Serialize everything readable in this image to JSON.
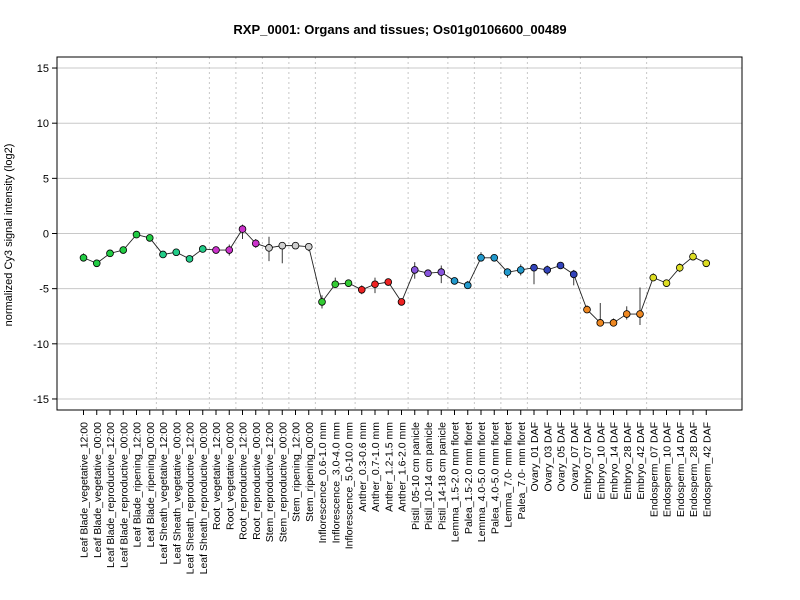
{
  "chart_data": {
    "type": "line",
    "title": "RXP_0001: Organs and tissues; Os01g0106600_00489",
    "ylabel": "normalized Cy3 signal intensity (log2)",
    "xlabel": "",
    "ylim": [
      -16,
      16
    ],
    "yticks": [
      -15,
      -10,
      -5,
      0,
      5,
      10,
      15
    ],
    "grid": {
      "horizontal": true,
      "vertical_group_separators": true
    },
    "categories": [
      "Leaf Blade_vegetative_12:00",
      "Leaf Blade_vegetative_00:00",
      "Leaf Blade_reproductive_12:00",
      "Leaf Blade_reproductive_00:00",
      "Leaf Blade_ripening_12:00",
      "Leaf Blade_ripening_00:00",
      "Leaf Sheath_vegetative_12:00",
      "Leaf Sheath_vegetative_00:00",
      "Leaf Sheath_reproductive_12:00",
      "Leaf Sheath_reproductive_00:00",
      "Root_vegetative_12:00",
      "Root_vegetative_00:00",
      "Root_reproductive_12:00",
      "Root_reproductive_00:00",
      "Stem_reproductive_12:00",
      "Stem_reproductive_00:00",
      "Stem_ripening_12:00",
      "Stem_ripening_00:00",
      "Inflorescence_0.6-1.0 mm",
      "Inflorescence_3.0-4.0 mm",
      "Inflorescence_5.0-10.0 mm",
      "Anther_0.3-0.6 mm",
      "Anther_0.7-1.0 mm",
      "Anther_1.2-1.5 mm",
      "Anther_1.6-2.0 mm",
      "Pistil_05-10 cm panicle",
      "Pistil_10-14 cm panicle",
      "Pistil_14-18 cm panicle",
      "Lemma_1.5-2.0 mm floret",
      "Palea_1.5-2.0 mm floret",
      "Lemma_4.0-5.0 mm floret",
      "Palea_4.0-5.0 mm floret",
      "Lemma_7.0- mm floret",
      "Palea_7.0- mm floret",
      "Ovary_01 DAF",
      "Ovary_03 DAF",
      "Ovary_05 DAF",
      "Ovary_07 DAF",
      "Embryo_07 DAF",
      "Embryo_10 DAF",
      "Embryo_14 DAF",
      "Embryo_28 DAF",
      "Embryo_42 DAF",
      "Endosperm_07 DAF",
      "Endosperm_10 DAF",
      "Endosperm_14 DAF",
      "Endosperm_28 DAF",
      "Endosperm_42 DAF"
    ],
    "values": [
      -2.2,
      -2.7,
      -1.8,
      -1.5,
      -0.1,
      -0.4,
      -1.9,
      -1.7,
      -2.3,
      -1.4,
      -1.5,
      -1.5,
      0.4,
      -0.9,
      -1.3,
      -1.1,
      -1.1,
      -1.2,
      -6.2,
      -4.6,
      -4.5,
      -5.1,
      -4.6,
      -4.4,
      -6.2,
      -3.3,
      -3.6,
      -3.5,
      -4.3,
      -4.7,
      -2.2,
      -2.2,
      -3.5,
      -3.3,
      -3.1,
      -3.3,
      -2.9,
      -3.7,
      -6.9,
      -8.1,
      -8.1,
      -7.3,
      -7.3,
      -4.0,
      -4.5,
      -3.1,
      -2.1,
      -2.7
    ],
    "errors": [
      [
        -2.5,
        -1.8
      ],
      [
        -2.8,
        -2.5
      ],
      [
        -2.0,
        -1.6
      ],
      [
        -1.8,
        -1.3
      ],
      [
        -0.3,
        0.1
      ],
      [
        -0.5,
        -0.2
      ],
      [
        -2.0,
        -1.7
      ],
      [
        -1.8,
        -1.5
      ],
      [
        -2.6,
        -2.0
      ],
      [
        -1.6,
        -1.2
      ],
      [
        -1.7,
        -1.3
      ],
      [
        -2.0,
        -1.0
      ],
      [
        -0.5,
        0.8
      ],
      [
        -1.3,
        -0.5
      ],
      [
        -2.5,
        -0.3
      ],
      [
        -2.7,
        -0.8
      ],
      [
        -1.4,
        -0.8
      ],
      [
        -1.6,
        -0.9
      ],
      [
        -6.8,
        -5.6
      ],
      [
        -4.9,
        -4.0
      ],
      [
        -4.7,
        -4.2
      ],
      [
        -5.5,
        -4.7
      ],
      [
        -5.4,
        -4.0
      ],
      [
        -4.6,
        -4.1
      ],
      [
        -6.5,
        -5.9
      ],
      [
        -4.1,
        -2.6
      ],
      [
        -3.8,
        -3.3
      ],
      [
        -4.5,
        -2.9
      ],
      [
        -4.6,
        -4.0
      ],
      [
        -5.0,
        -4.3
      ],
      [
        -2.4,
        -1.7
      ],
      [
        -2.4,
        -2.0
      ],
      [
        -4.0,
        -3.2
      ],
      [
        -3.8,
        -2.8
      ],
      [
        -4.6,
        -2.8
      ],
      [
        -3.8,
        -2.9
      ],
      [
        -3.2,
        -2.6
      ],
      [
        -4.7,
        -3.3
      ],
      [
        -7.1,
        -6.5
      ],
      [
        -8.3,
        -6.3
      ],
      [
        -8.3,
        -7.7
      ],
      [
        -7.8,
        -6.6
      ],
      [
        -8.3,
        -4.9
      ],
      [
        -4.3,
        -3.6
      ],
      [
        -4.7,
        -4.2
      ],
      [
        -3.5,
        -2.7
      ],
      [
        -2.3,
        -1.5
      ],
      [
        -2.9,
        -2.5
      ]
    ],
    "group_separators_after": [
      5,
      9,
      11,
      13,
      15,
      17,
      20,
      24,
      27,
      29,
      31,
      33,
      37,
      42
    ],
    "colors": [
      "#22cc44",
      "#22cc44",
      "#22cc44",
      "#22cc44",
      "#22cc44",
      "#22cc44",
      "#22cc88",
      "#22cc88",
      "#22cc88",
      "#22cc88",
      "#cc33cc",
      "#cc33cc",
      "#cc33cc",
      "#cc33cc",
      "#d0d0d0",
      "#d0d0d0",
      "#d0d0d0",
      "#d0d0d0",
      "#33cc33",
      "#33cc33",
      "#33cc33",
      "#ee2222",
      "#ee2222",
      "#ee2222",
      "#ee2222",
      "#8855dd",
      "#8855dd",
      "#8855dd",
      "#2299cc",
      "#2299cc",
      "#2299cc",
      "#2299cc",
      "#2299cc",
      "#2299cc",
      "#3344bb",
      "#3344bb",
      "#3344bb",
      "#3344bb",
      "#ee8822",
      "#ee8822",
      "#ee8822",
      "#ee8822",
      "#ee8822",
      "#dddd22",
      "#dddd22",
      "#dddd22",
      "#dddd22",
      "#dddd22"
    ]
  }
}
